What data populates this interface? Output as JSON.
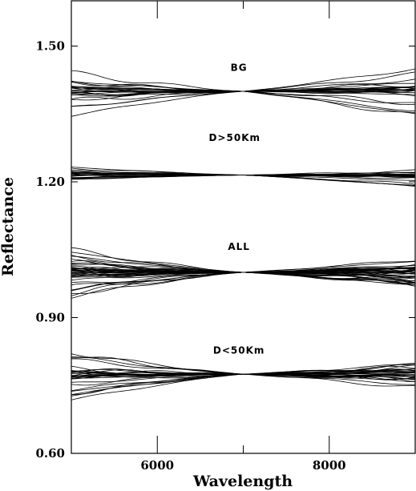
{
  "chart_data": {
    "type": "line",
    "xlabel": "Wavelength",
    "ylabel": "Reflectance",
    "xlim": [
      5000,
      9000
    ],
    "ylim": [
      0.6,
      1.6
    ],
    "x_ticks": [
      6000,
      8000
    ],
    "y_ticks": [
      0.6,
      0.9,
      1.2,
      1.5
    ],
    "x_tick_labels": [
      "6000",
      "8000"
    ],
    "y_tick_labels": [
      "0.60",
      "0.90",
      "1.20",
      "1.50"
    ],
    "grid": false,
    "normalization_wavelength": 7000,
    "groups": [
      {
        "label": "BG",
        "label_x": 6950,
        "label_y": 1.445,
        "center": 1.4,
        "spread_left": 0.055,
        "spread_right": 0.065,
        "n_curves": 26,
        "dense_band": 0.012
      },
      {
        "label": "D>50Km",
        "label_x": 6900,
        "label_y": 1.29,
        "center": 1.215,
        "spread_left": 0.018,
        "spread_right": 0.025,
        "n_curves": 22,
        "dense_band": 0.006
      },
      {
        "label": "ALL",
        "label_x": 6950,
        "label_y": 1.05,
        "center": 1.0,
        "spread_left": 0.06,
        "spread_right": 0.03,
        "n_curves": 40,
        "dense_band": 0.012
      },
      {
        "label": "D<50Km",
        "label_x": 6950,
        "label_y": 0.82,
        "center": 0.775,
        "spread_left": 0.06,
        "spread_right": 0.03,
        "n_curves": 30,
        "dense_band": 0.012
      }
    ]
  }
}
